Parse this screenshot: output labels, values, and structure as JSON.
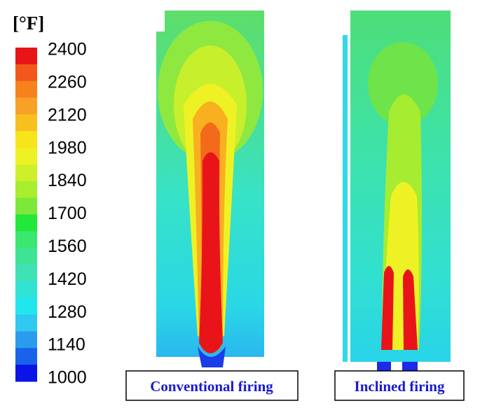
{
  "colorbar": {
    "title": "[°F]",
    "labels": [
      2400,
      2260,
      2120,
      1980,
      1840,
      1700,
      1560,
      1420,
      1280,
      1140,
      1000
    ],
    "colors": [
      "#e8141a",
      "#f2581a",
      "#f6821e",
      "#f7a226",
      "#f8c01e",
      "#f7e41a",
      "#eef224",
      "#cdf02a",
      "#a8ee2e",
      "#7ee83a",
      "#22e83a",
      "#3ae870",
      "#3ee496",
      "#3ee2b4",
      "#32e2d4",
      "#22e6ee",
      "#2ec8f0",
      "#2a9cee",
      "#1a62ea",
      "#0a14e6"
    ]
  },
  "panels": [
    {
      "label": "Conventional firing"
    },
    {
      "label": "Inclined firing"
    }
  ]
}
